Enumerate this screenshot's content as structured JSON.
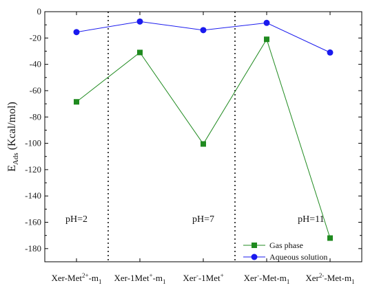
{
  "chart_data": {
    "type": "line",
    "ylabel": {
      "main": "E",
      "sub": "Ads",
      "rest": " (Kcal/mol)"
    },
    "ylim": [
      -190,
      0
    ],
    "yticks": [
      0,
      -20,
      -40,
      -60,
      -80,
      -100,
      -120,
      -140,
      -160,
      -180
    ],
    "categories": [
      {
        "pre": "Xer-Met",
        "sup1": "2+",
        "mid": "-m",
        "sub1": "1",
        "sup2": "",
        "post": ""
      },
      {
        "pre": "Xer-1Met",
        "sup1": "+",
        "mid": "-m",
        "sub1": "1",
        "sup2": "",
        "post": ""
      },
      {
        "pre": "Xer",
        "sup1": "-",
        "mid": "-1Met",
        "sub1": "",
        "sup2": "+",
        "post": ""
      },
      {
        "pre": "Xer",
        "sup1": "-",
        "mid": "-Met-m",
        "sub1": "1",
        "sup2": "",
        "post": ""
      },
      {
        "pre": "Xer",
        "sup1": "2-",
        "mid": "-Met-m",
        "sub1": "1",
        "sup2": "",
        "post": ""
      }
    ],
    "series": [
      {
        "name": "Gas phase",
        "color": "#1f8a1f",
        "marker": "square",
        "values": [
          -68.5,
          -31,
          -100.5,
          -21,
          -172
        ]
      },
      {
        "name": "Aqueous solution",
        "color": "#1a1aee",
        "marker": "circle",
        "values": [
          -15.5,
          -7.5,
          -14,
          -8.5,
          -31
        ]
      }
    ],
    "dividers_after_index": [
      0,
      2
    ],
    "regions": [
      {
        "label": "pH=2",
        "center_index": 0
      },
      {
        "label": "pH=7",
        "center_index": 2
      },
      {
        "label": "pH=11",
        "center_index": 3.7
      }
    ],
    "legend_position": "bottom-right"
  }
}
